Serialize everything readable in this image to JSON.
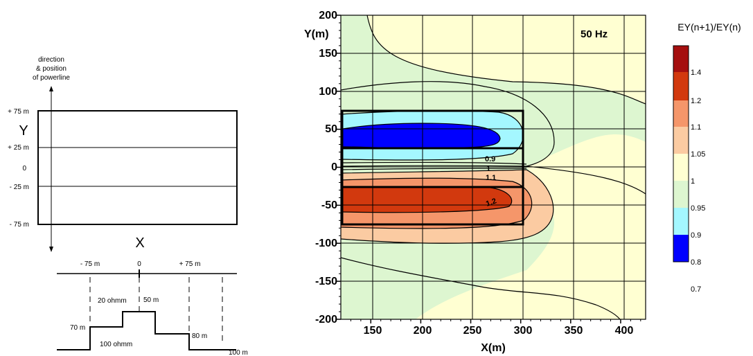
{
  "left_diagram": {
    "direction_label_line1": "direction",
    "direction_label_line2": "& position",
    "direction_label_line3": "of powerline",
    "y_axis_label": "Y",
    "x_axis_label": "X",
    "y_ticks": [
      "+ 75 m",
      "+ 25 m",
      "0",
      "- 25 m",
      "- 75 m"
    ],
    "x_ticks": [
      "- 75 m",
      "0",
      "+ 75 m"
    ],
    "section_labels": {
      "upper_resistivity": "20 ohmm",
      "lower_resistivity": "100 ohmm",
      "depth_70": "70 m",
      "depth_50": "50 m",
      "depth_80": "80 m",
      "depth_100": "100 m"
    }
  },
  "contour_chart": {
    "frequency_label": "50 Hz",
    "ylabel": "Y(m)",
    "xlabel": "X(m)",
    "x_ticks": [
      "150",
      "200",
      "250",
      "300",
      "350",
      "400"
    ],
    "y_ticks": [
      "200",
      "150",
      "100",
      "50",
      "0",
      "-50",
      "-100",
      "-150",
      "-200"
    ],
    "contour_labels": [
      "0.9",
      "1",
      "1.1",
      "1.2"
    ]
  },
  "colorbar": {
    "title": "EY(n+1)/EY(n)",
    "levels": [
      "1.4",
      "1.2",
      "1.1",
      "1.05",
      "1",
      "0.95",
      "0.9",
      "0.8",
      "0.7"
    ],
    "colors": [
      "#a50f0f",
      "#d2390e",
      "#f5966a",
      "#fbcba2",
      "#ffffd2",
      "#ddf6d0",
      "#a4f7ff",
      "#0000ff"
    ]
  },
  "chart_data": {
    "type": "heatmap",
    "xlabel": "X(m)",
    "ylabel": "Y(m)",
    "xlim": [
      120,
      425
    ],
    "ylim": [
      -200,
      200
    ],
    "x_ticks": [
      150,
      200,
      250,
      300,
      350,
      400
    ],
    "y_ticks": [
      -200,
      -150,
      -100,
      -50,
      0,
      50,
      100,
      150,
      200
    ],
    "grid": true,
    "annotation": "50 Hz",
    "colorbar_title": "EY(n+1)/EY(n)",
    "colorbar_levels": [
      0.7,
      0.8,
      0.9,
      0.95,
      1,
      1.05,
      1.1,
      1.2,
      1.4
    ],
    "contour_labels": [
      0.9,
      1,
      1.1,
      1.2
    ],
    "anomaly_outline": {
      "x": [
        120,
        300
      ],
      "y": [
        -75,
        75
      ]
    }
  }
}
